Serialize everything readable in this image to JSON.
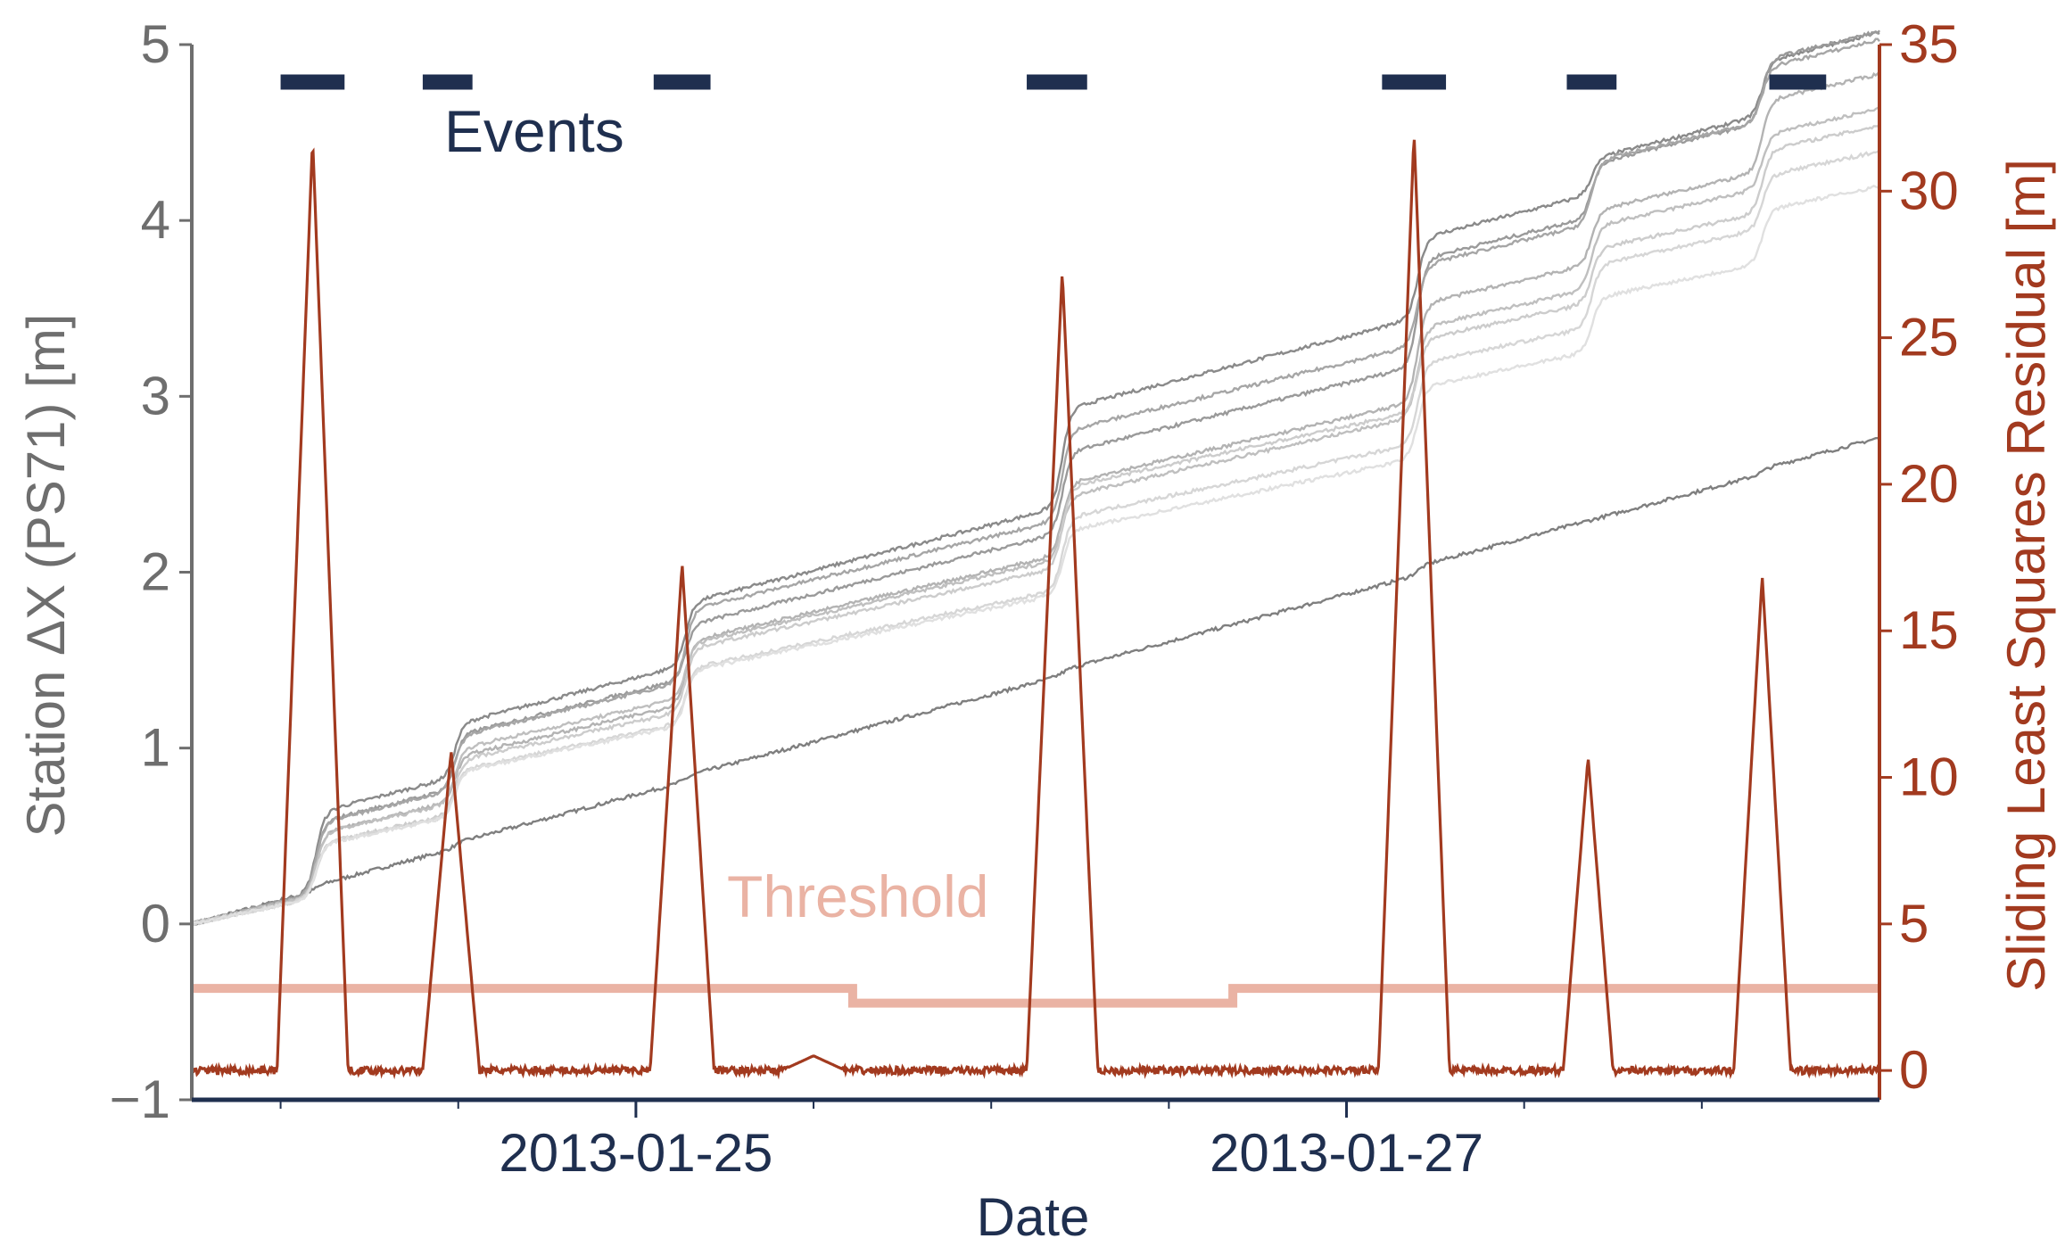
{
  "colors": {
    "left_axis": "#6e6e6e",
    "right_axis": "#a23a1f",
    "events": "#1f2f4f",
    "threshold": "#eab3a4",
    "residual": "#a23a1f",
    "x_axis": "#1f2f4f"
  },
  "chart_data": {
    "type": "line",
    "xlabel": "Date",
    "ylabel_left": "Station ΔX (PS71) [m]",
    "ylabel_right": "Sliding Least Squares Residual [m]",
    "x_ticks": [
      "2013-01-25",
      "2013-01-27"
    ],
    "x_tick_values": [
      1.0,
      3.0
    ],
    "x_minor_tick_values": [
      0.0,
      0.5,
      1.0,
      1.5,
      2.0,
      2.5,
      3.0,
      3.5,
      4.0
    ],
    "xlim": [
      -0.25,
      4.5
    ],
    "ylim_left": [
      -1,
      5
    ],
    "y_ticks_left": [
      "−1",
      "0",
      "1",
      "2",
      "3",
      "4",
      "5"
    ],
    "ylim_right": [
      -1.0,
      35
    ],
    "y_ticks_right": [
      "0",
      "5",
      "10",
      "15",
      "20",
      "25",
      "30",
      "35"
    ],
    "grid": false,
    "x_axis_note": "x values are days after 2013-01-24 00:00",
    "annotations": {
      "events": "Events",
      "threshold": "Threshold"
    },
    "events": [
      {
        "start": 0.0,
        "end": 0.18
      },
      {
        "start": 0.4,
        "end": 0.54
      },
      {
        "start": 1.05,
        "end": 1.21
      },
      {
        "start": 2.1,
        "end": 2.27
      },
      {
        "start": 3.1,
        "end": 3.28
      },
      {
        "start": 3.62,
        "end": 3.76
      },
      {
        "start": 4.19,
        "end": 4.35
      }
    ],
    "threshold": [
      {
        "x0": -0.25,
        "x1": 1.61,
        "y": 2.8
      },
      {
        "x0": 1.61,
        "x1": 2.68,
        "y": 2.3
      },
      {
        "x0": 2.68,
        "x1": 4.5,
        "y": 2.8
      }
    ],
    "residual_peaks": [
      {
        "center": 0.09,
        "peak": 31.8,
        "half_width": 0.1
      },
      {
        "center": 0.48,
        "peak": 10.9,
        "half_width": 0.08
      },
      {
        "center": 1.13,
        "peak": 17.3,
        "half_width": 0.09
      },
      {
        "center": 1.5,
        "peak": 0.5,
        "half_width": 0.09
      },
      {
        "center": 2.2,
        "peak": 27.3,
        "half_width": 0.1
      },
      {
        "center": 3.19,
        "peak": 32.0,
        "half_width": 0.1
      },
      {
        "center": 3.68,
        "peak": 10.7,
        "half_width": 0.07
      },
      {
        "center": 4.17,
        "peak": 16.9,
        "half_width": 0.08
      }
    ],
    "residual_baseline": 0.0,
    "series": [
      {
        "base": 0.0,
        "slope": 0.54,
        "steps": [
          [
            0.1,
            0.03
          ],
          [
            0.49,
            0.03
          ],
          [
            1.14,
            0.03
          ],
          [
            2.2,
            0.03
          ],
          [
            3.2,
            0.05
          ],
          [
            4.17,
            0.03
          ]
        ],
        "color": "#7f7f7f"
      },
      {
        "base": 0.0,
        "slope": 0.52,
        "steps": [
          [
            0.1,
            0.45
          ],
          [
            0.49,
            0.3
          ],
          [
            1.14,
            0.35
          ],
          [
            2.2,
            0.55
          ],
          [
            3.2,
            0.45
          ],
          [
            3.69,
            0.2
          ],
          [
            4.17,
            0.3
          ]
        ],
        "color": "#8a8a8a"
      },
      {
        "base": 0.0,
        "slope": 0.5,
        "steps": [
          [
            0.1,
            0.4
          ],
          [
            0.49,
            0.3
          ],
          [
            1.14,
            0.3
          ],
          [
            2.2,
            0.45
          ],
          [
            3.2,
            0.6
          ],
          [
            3.69,
            0.3
          ],
          [
            4.17,
            0.35
          ]
        ],
        "color": "#9a9a9a"
      },
      {
        "base": 0.0,
        "slope": 0.49,
        "steps": [
          [
            0.1,
            0.4
          ],
          [
            0.49,
            0.3
          ],
          [
            1.14,
            0.4
          ],
          [
            2.2,
            0.5
          ],
          [
            3.2,
            0.45
          ],
          [
            3.69,
            0.35
          ],
          [
            4.17,
            0.3
          ]
        ],
        "color": "#a6a6a6"
      },
      {
        "base": 0.0,
        "slope": 0.47,
        "steps": [
          [
            0.1,
            0.35
          ],
          [
            0.49,
            0.25
          ],
          [
            1.14,
            0.35
          ],
          [
            2.2,
            0.4
          ],
          [
            3.2,
            0.55
          ],
          [
            3.69,
            0.3
          ],
          [
            4.17,
            0.4
          ]
        ],
        "color": "#b3b3b3"
      },
      {
        "base": 0.0,
        "slope": 0.46,
        "steps": [
          [
            0.1,
            0.35
          ],
          [
            0.49,
            0.3
          ],
          [
            1.14,
            0.3
          ],
          [
            2.2,
            0.35
          ],
          [
            3.2,
            0.5
          ],
          [
            3.69,
            0.35
          ],
          [
            4.17,
            0.3
          ]
        ],
        "color": "#bfbfbf"
      },
      {
        "base": 0.0,
        "slope": 0.44,
        "steps": [
          [
            0.1,
            0.3
          ],
          [
            0.49,
            0.3
          ],
          [
            1.14,
            0.35
          ],
          [
            2.2,
            0.45
          ],
          [
            3.2,
            0.4
          ],
          [
            3.69,
            0.3
          ],
          [
            4.17,
            0.35
          ]
        ],
        "color": "#cccccc"
      },
      {
        "base": 0.0,
        "slope": 0.43,
        "steps": [
          [
            0.1,
            0.3
          ],
          [
            0.49,
            0.25
          ],
          [
            1.14,
            0.3
          ],
          [
            2.2,
            0.4
          ],
          [
            3.2,
            0.45
          ],
          [
            3.69,
            0.35
          ],
          [
            4.17,
            0.3
          ]
        ],
        "color": "#d6d6d6"
      },
      {
        "base": 0.0,
        "slope": 0.42,
        "steps": [
          [
            0.1,
            0.3
          ],
          [
            0.49,
            0.25
          ],
          [
            1.14,
            0.3
          ],
          [
            2.2,
            0.35
          ],
          [
            3.2,
            0.4
          ],
          [
            3.69,
            0.3
          ],
          [
            4.17,
            0.3
          ]
        ],
        "color": "#e0e0e0"
      }
    ]
  }
}
